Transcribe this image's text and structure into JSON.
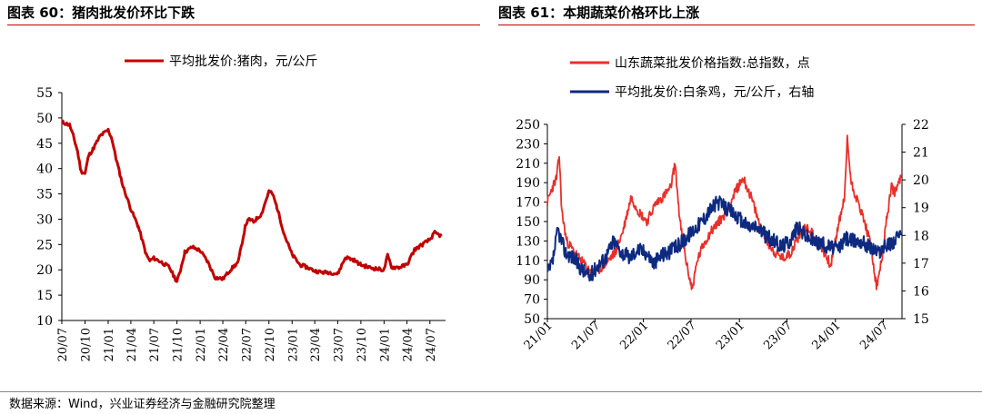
{
  "left": {
    "title": "图表 60：猪肉批发价环比下跌",
    "chart_data": {
      "type": "line",
      "series": [
        {
          "name": "平均批发价:猪肉，元/公斤",
          "color": "#c00000",
          "points": [
            [
              "2020-07-01",
              49.2
            ],
            [
              "2020-08-01",
              48.6
            ],
            [
              "2020-08-15",
              46.5
            ],
            [
              "2020-09-01",
              43.5
            ],
            [
              "2020-09-15",
              39.5
            ],
            [
              "2020-10-01",
              39.0
            ],
            [
              "2020-10-15",
              42.5
            ],
            [
              "2020-11-01",
              43.8
            ],
            [
              "2020-12-01",
              46.5
            ],
            [
              "2021-01-01",
              47.6
            ],
            [
              "2021-01-15",
              46.0
            ],
            [
              "2021-02-01",
              42.0
            ],
            [
              "2021-03-01",
              36.5
            ],
            [
              "2021-04-01",
              32.0
            ],
            [
              "2021-05-01",
              28.5
            ],
            [
              "2021-06-01",
              23.0
            ],
            [
              "2021-06-15",
              21.8
            ],
            [
              "2021-07-01",
              22.3
            ],
            [
              "2021-08-01",
              21.5
            ],
            [
              "2021-09-01",
              20.5
            ],
            [
              "2021-10-01",
              17.6
            ],
            [
              "2021-10-15",
              20.0
            ],
            [
              "2021-11-01",
              23.5
            ],
            [
              "2021-12-01",
              24.5
            ],
            [
              "2022-01-01",
              23.8
            ],
            [
              "2022-02-01",
              21.5
            ],
            [
              "2022-03-01",
              18.5
            ],
            [
              "2022-04-01",
              18.2
            ],
            [
              "2022-05-01",
              20.0
            ],
            [
              "2022-06-01",
              21.5
            ],
            [
              "2022-07-01",
              29.0
            ],
            [
              "2022-07-15",
              30.0
            ],
            [
              "2022-08-01",
              29.5
            ],
            [
              "2022-09-01",
              31.0
            ],
            [
              "2022-10-01",
              35.5
            ],
            [
              "2022-10-15",
              35.0
            ],
            [
              "2022-11-01",
              32.5
            ],
            [
              "2022-12-01",
              27.0
            ],
            [
              "2023-01-01",
              23.0
            ],
            [
              "2023-02-01",
              21.0
            ],
            [
              "2023-03-01",
              20.5
            ],
            [
              "2023-04-01",
              19.8
            ],
            [
              "2023-05-01",
              19.5
            ],
            [
              "2023-06-01",
              19.5
            ],
            [
              "2023-07-01",
              19.2
            ],
            [
              "2023-08-01",
              22.5
            ],
            [
              "2023-09-01",
              22.0
            ],
            [
              "2023-10-01",
              21.0
            ],
            [
              "2023-11-01",
              20.5
            ],
            [
              "2023-12-01",
              20.2
            ],
            [
              "2024-01-01",
              20.0
            ],
            [
              "2024-01-15",
              22.8
            ],
            [
              "2024-02-01",
              20.5
            ],
            [
              "2024-03-01",
              20.5
            ],
            [
              "2024-04-01",
              21.0
            ],
            [
              "2024-05-01",
              24.0
            ],
            [
              "2024-06-01",
              25.0
            ],
            [
              "2024-07-01",
              26.0
            ],
            [
              "2024-07-20",
              27.3
            ],
            [
              "2024-08-15",
              26.7
            ]
          ]
        }
      ],
      "ylim": [
        10,
        55
      ],
      "yticks": [
        "10",
        "15",
        "20",
        "25",
        "30",
        "35",
        "40",
        "45",
        "50",
        "55"
      ],
      "xticks": [
        "20/07",
        "20/10",
        "21/01",
        "21/04",
        "21/07",
        "21/10",
        "22/01",
        "22/04",
        "22/07",
        "22/10",
        "23/01",
        "23/04",
        "23/07",
        "23/10",
        "24/01",
        "24/04",
        "24/07"
      ],
      "legend": "top"
    }
  },
  "right": {
    "title": "图表 61：本期蔬菜价格环比上涨",
    "chart_data": {
      "type": "line",
      "series": [
        {
          "name": "山东蔬菜批发价格指数:总指数，点",
          "color": "#e8302a",
          "axis": "left",
          "points": [
            [
              "2021-01-01",
              170
            ],
            [
              "2021-01-20",
              185
            ],
            [
              "2021-02-05",
              195
            ],
            [
              "2021-02-15",
              218
            ],
            [
              "2021-02-25",
              160
            ],
            [
              "2021-03-15",
              130
            ],
            [
              "2021-04-15",
              118
            ],
            [
              "2021-05-15",
              108
            ],
            [
              "2021-06-15",
              98
            ],
            [
              "2021-07-15",
              100
            ],
            [
              "2021-08-15",
              108
            ],
            [
              "2021-09-15",
              118
            ],
            [
              "2021-10-15",
              140
            ],
            [
              "2021-11-15",
              175
            ],
            [
              "2021-12-15",
              160
            ],
            [
              "2022-01-15",
              150
            ],
            [
              "2022-02-15",
              168
            ],
            [
              "2022-03-15",
              175
            ],
            [
              "2022-04-15",
              185
            ],
            [
              "2022-05-01",
              210
            ],
            [
              "2022-05-20",
              150
            ],
            [
              "2022-06-15",
              105
            ],
            [
              "2022-07-05",
              80
            ],
            [
              "2022-07-25",
              110
            ],
            [
              "2022-08-15",
              125
            ],
            [
              "2022-09-15",
              140
            ],
            [
              "2022-10-15",
              150
            ],
            [
              "2022-11-15",
              160
            ],
            [
              "2022-12-15",
              180
            ],
            [
              "2023-01-15",
              195
            ],
            [
              "2023-02-15",
              175
            ],
            [
              "2023-03-15",
              150
            ],
            [
              "2023-04-15",
              130
            ],
            [
              "2023-05-15",
              118
            ],
            [
              "2023-06-15",
              112
            ],
            [
              "2023-07-15",
              118
            ],
            [
              "2023-08-15",
              135
            ],
            [
              "2023-09-15",
              145
            ],
            [
              "2023-10-15",
              135
            ],
            [
              "2023-11-15",
              120
            ],
            [
              "2023-12-15",
              105
            ],
            [
              "2024-01-15",
              150
            ],
            [
              "2024-02-05",
              175
            ],
            [
              "2024-02-15",
              235
            ],
            [
              "2024-03-01",
              190
            ],
            [
              "2024-03-20",
              175
            ],
            [
              "2024-04-15",
              155
            ],
            [
              "2024-05-15",
              125
            ],
            [
              "2024-06-05",
              82
            ],
            [
              "2024-06-25",
              110
            ],
            [
              "2024-07-15",
              155
            ],
            [
              "2024-08-01",
              185
            ],
            [
              "2024-08-15",
              180
            ],
            [
              "2024-09-05",
              195
            ]
          ]
        },
        {
          "name": "平均批发价:白条鸡，元/公斤，右轴",
          "color": "#0d2a80",
          "axis": "right",
          "points": [
            [
              "2021-01-01",
              16.6
            ],
            [
              "2021-01-20",
              17.0
            ],
            [
              "2021-02-10",
              18.2
            ],
            [
              "2021-03-10",
              17.4
            ],
            [
              "2021-04-10",
              17.2
            ],
            [
              "2021-05-10",
              16.8
            ],
            [
              "2021-06-10",
              16.5
            ],
            [
              "2021-07-10",
              16.9
            ],
            [
              "2021-08-10",
              17.2
            ],
            [
              "2021-09-10",
              17.8
            ],
            [
              "2021-10-10",
              17.4
            ],
            [
              "2021-11-10",
              17.2
            ],
            [
              "2021-12-10",
              17.5
            ],
            [
              "2022-01-10",
              17.4
            ],
            [
              "2022-02-10",
              17.0
            ],
            [
              "2022-03-10",
              17.3
            ],
            [
              "2022-04-10",
              17.4
            ],
            [
              "2022-05-10",
              17.6
            ],
            [
              "2022-06-10",
              17.9
            ],
            [
              "2022-07-10",
              18.2
            ],
            [
              "2022-08-10",
              18.5
            ],
            [
              "2022-09-10",
              18.9
            ],
            [
              "2022-10-10",
              19.2
            ],
            [
              "2022-11-10",
              19.0
            ],
            [
              "2022-12-10",
              18.8
            ],
            [
              "2023-01-10",
              18.5
            ],
            [
              "2023-02-10",
              18.3
            ],
            [
              "2023-03-10",
              18.3
            ],
            [
              "2023-04-10",
              18.0
            ],
            [
              "2023-05-10",
              17.8
            ],
            [
              "2023-06-10",
              17.6
            ],
            [
              "2023-07-10",
              17.8
            ],
            [
              "2023-08-10",
              18.3
            ],
            [
              "2023-09-10",
              18.0
            ],
            [
              "2023-10-10",
              17.8
            ],
            [
              "2023-11-10",
              17.7
            ],
            [
              "2023-12-10",
              17.6
            ],
            [
              "2024-01-10",
              17.5
            ],
            [
              "2024-02-10",
              17.9
            ],
            [
              "2024-03-10",
              17.8
            ],
            [
              "2024-04-10",
              17.8
            ],
            [
              "2024-05-10",
              17.6
            ],
            [
              "2024-06-10",
              17.4
            ],
            [
              "2024-07-10",
              17.6
            ],
            [
              "2024-08-10",
              17.8
            ],
            [
              "2024-09-05",
              18.0
            ]
          ]
        }
      ],
      "ylim_left": [
        50,
        250
      ],
      "yticks_left": [
        "50",
        "70",
        "90",
        "110",
        "130",
        "150",
        "170",
        "190",
        "210",
        "230",
        "250"
      ],
      "ylim_right": [
        15,
        22
      ],
      "yticks_right": [
        "15",
        "16",
        "17",
        "18",
        "19",
        "20",
        "21",
        "22"
      ],
      "xticks": [
        "21/01",
        "21/07",
        "22/01",
        "22/07",
        "23/01",
        "23/07",
        "24/01",
        "24/07"
      ],
      "legend": "top"
    }
  },
  "source": "数据来源：Wind，兴业证券经济与金融研究院整理"
}
